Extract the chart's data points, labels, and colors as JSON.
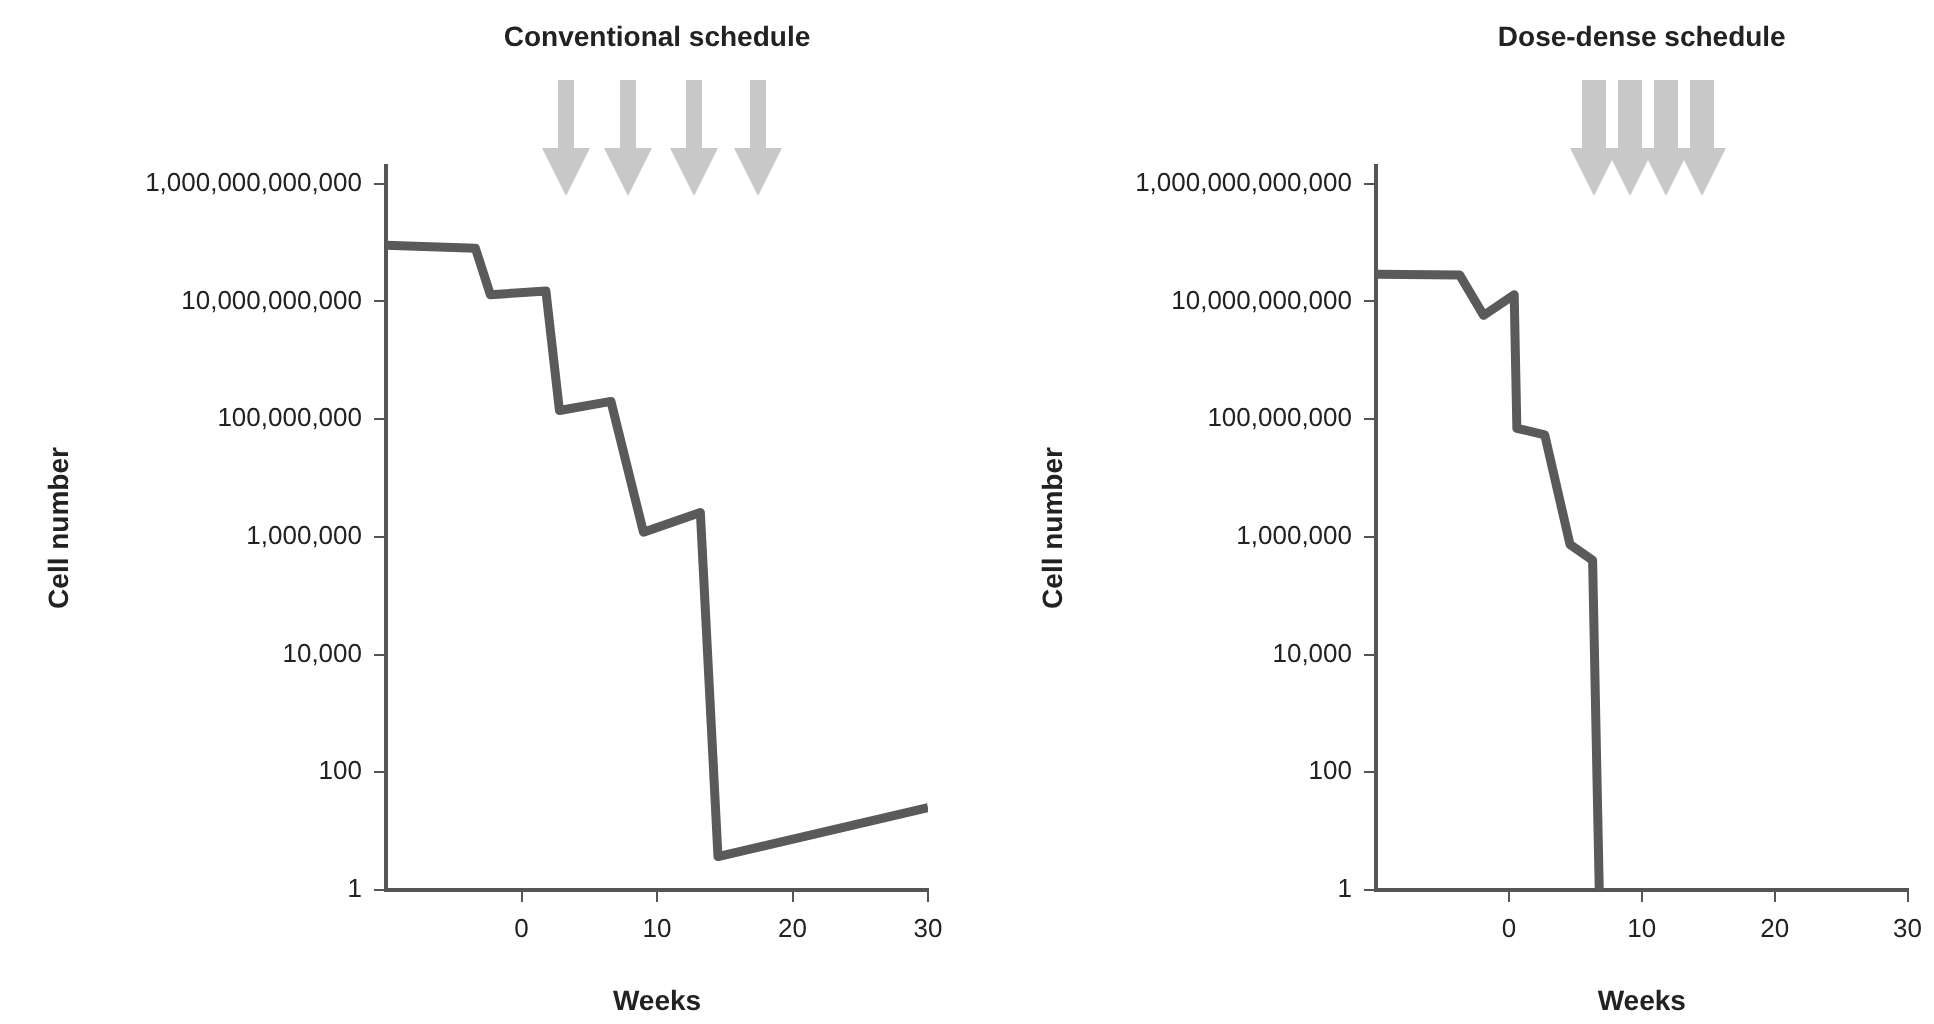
{
  "chart_data": [
    {
      "type": "line",
      "title": "Conventional schedule",
      "xlabel": "Weeks",
      "ylabel": "Cell number",
      "log": "y",
      "grid": false,
      "legend": false,
      "marker": "none",
      "line_style": "solid",
      "series": [
        {
          "color": "#5a5a5a",
          "x": [
            -10,
            -3.4,
            -2.3,
            1.8,
            2.8,
            6.6,
            9.0,
            13.2,
            14.5,
            30
          ],
          "values": [
            90000000000,
            80000000000,
            13000000000,
            15000000000,
            140000000,
            200000000,
            1200000,
            2600000,
            3.7,
            25
          ]
        }
      ],
      "xlim": [
        -10,
        30
      ],
      "xticks": [
        0,
        10,
        20,
        30
      ],
      "ylim": [
        1,
        2000000000000
      ],
      "yticks": [
        {
          "value": 1,
          "label": "1"
        },
        {
          "value": 100,
          "label": "100"
        },
        {
          "value": 10000,
          "label": "10,000"
        },
        {
          "value": 1000000,
          "label": "1,000,000"
        },
        {
          "value": 100000000,
          "label": "100,000,000"
        },
        {
          "value": 10000000000,
          "label": "10,000,000,000"
        },
        {
          "value": 1000000000000,
          "label": "1,000,000,000,000"
        }
      ]
    },
    {
      "type": "line",
      "title": "Dose-dense schedule",
      "xlabel": "Weeks",
      "ylabel": "Cell number",
      "log": "y",
      "grid": false,
      "legend": false,
      "marker": "none",
      "line_style": "solid",
      "series": [
        {
          "color": "#5a5a5a",
          "x": [
            -10,
            -3.7,
            -1.9,
            0.4,
            0.6,
            2.7,
            4.6,
            6.3,
            6.8
          ],
          "values": [
            29000000000,
            28000000000,
            5800000000,
            13000000000,
            70000000,
            54000000,
            740000,
            400000,
            1
          ]
        }
      ],
      "xlim": [
        -10,
        30
      ],
      "xticks": [
        0,
        10,
        20,
        30
      ],
      "ylim": [
        1,
        2000000000000
      ],
      "yticks": [
        {
          "value": 1,
          "label": "1"
        },
        {
          "value": 100,
          "label": "100"
        },
        {
          "value": 10000,
          "label": "10,000"
        },
        {
          "value": 1000000,
          "label": "1,000,000"
        },
        {
          "value": 100000000,
          "label": "100,000,000"
        },
        {
          "value": 10000000000,
          "label": "10,000,000,000"
        },
        {
          "value": 1000000000000,
          "label": "1,000,000,000,000"
        }
      ]
    }
  ]
}
